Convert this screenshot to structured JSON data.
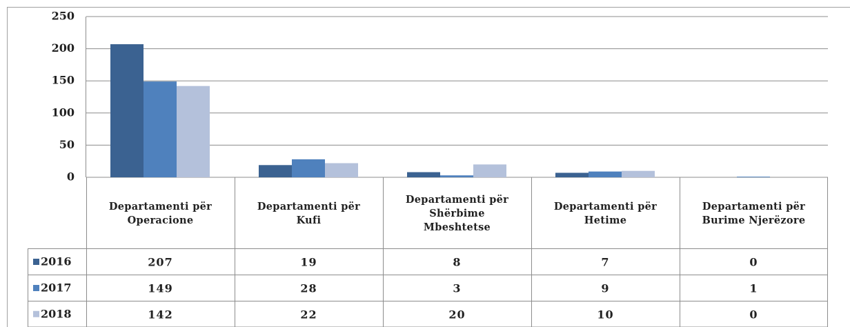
{
  "chart_data": {
    "type": "bar",
    "categories": [
      "Departamenti për\nOperacione",
      "Departamenti për\nKufi",
      "Departamenti për\nShërbime\nMbeshtetse",
      "Departamenti për\nHetime",
      "Departamenti për\nBurime Njerëzore"
    ],
    "series": [
      {
        "name": "2016",
        "color": "#3b6291",
        "values": [
          207,
          19,
          8,
          7,
          0
        ]
      },
      {
        "name": "2017",
        "color": "#4f81bd",
        "values": [
          149,
          28,
          3,
          9,
          1
        ]
      },
      {
        "name": "2018",
        "color": "#b4c1db",
        "values": [
          142,
          22,
          20,
          10,
          0
        ]
      }
    ],
    "ylim": [
      0,
      250
    ],
    "yticks": [
      0,
      50,
      100,
      150,
      200,
      250
    ],
    "grid": true
  }
}
